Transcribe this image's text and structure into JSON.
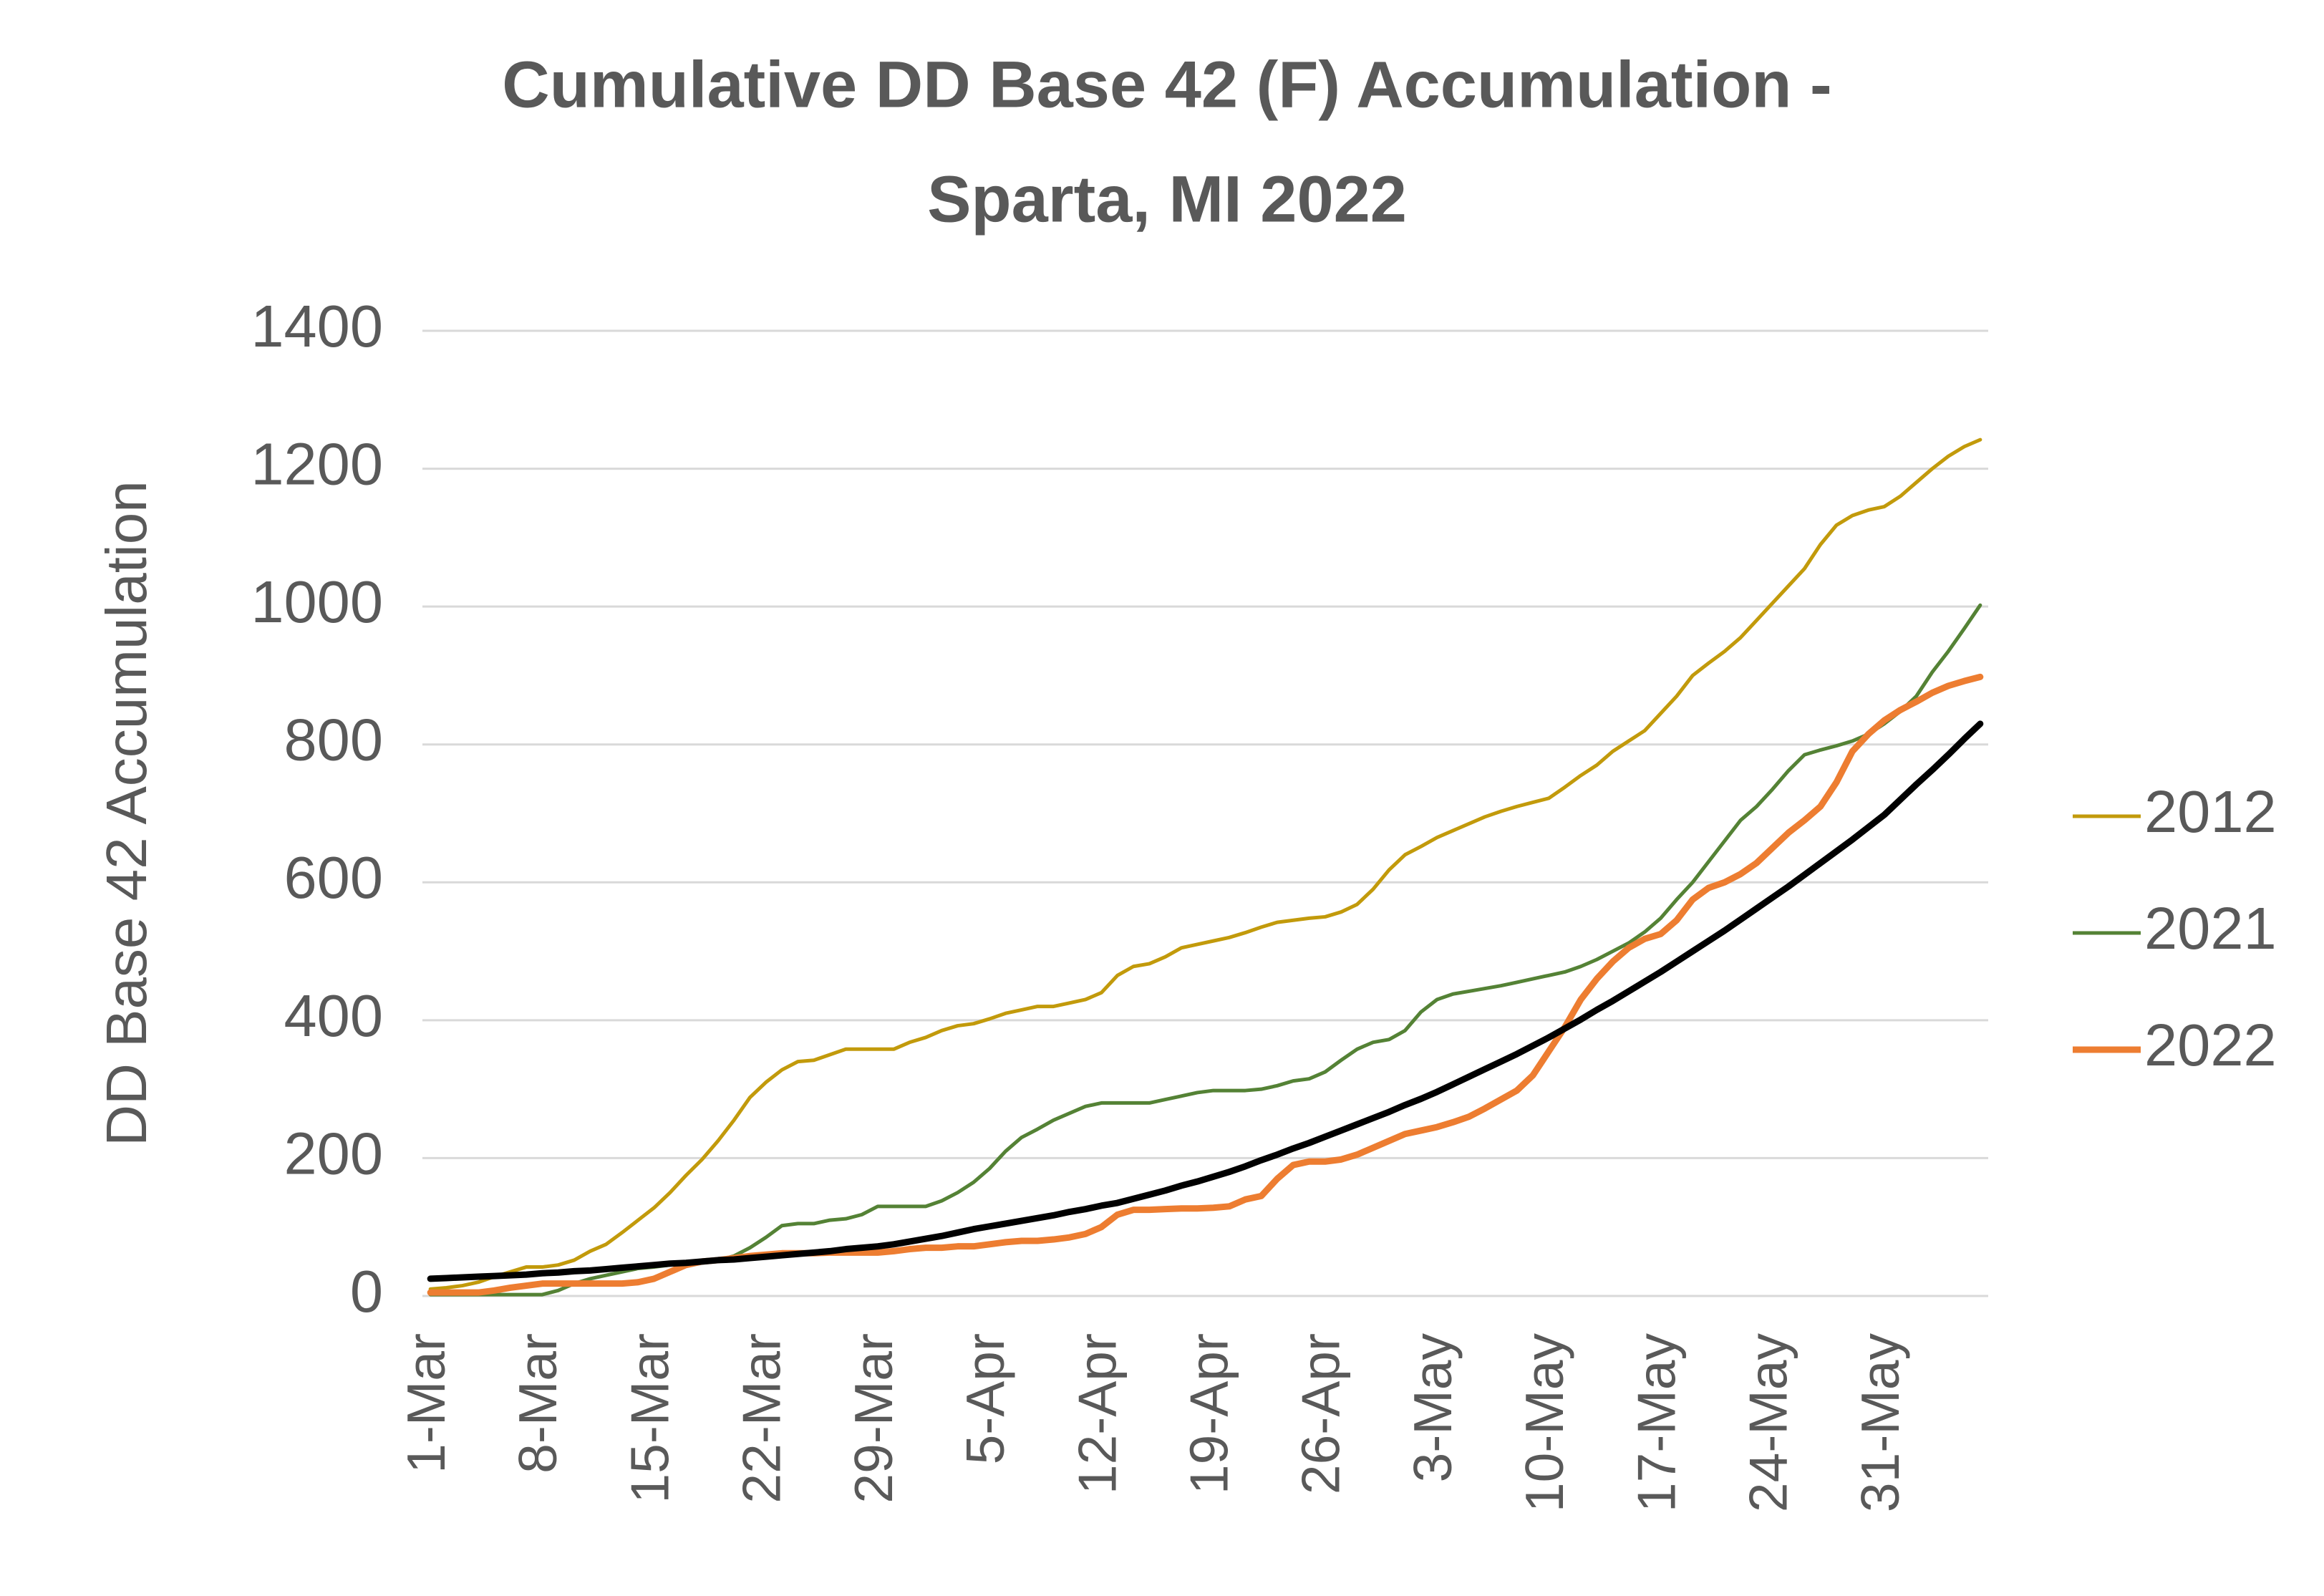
{
  "chart_data": {
    "type": "line",
    "title": [
      "Cumulative DD Base 42 (F) Accumulation -",
      "Sparta, MI 2022"
    ],
    "y_label": "DD Base 42 Accumulation",
    "categories": [
      "1-Mar",
      null,
      null,
      null,
      null,
      null,
      null,
      "8-Mar",
      null,
      null,
      null,
      null,
      null,
      null,
      "15-Mar",
      null,
      null,
      null,
      null,
      null,
      null,
      "22-Mar",
      null,
      null,
      null,
      null,
      null,
      null,
      "29-Mar",
      null,
      null,
      null,
      null,
      null,
      null,
      "5-Apr",
      null,
      null,
      null,
      null,
      null,
      null,
      "12-Apr",
      null,
      null,
      null,
      null,
      null,
      null,
      "19-Apr",
      null,
      null,
      null,
      null,
      null,
      null,
      "26-Apr",
      null,
      null,
      null,
      null,
      null,
      null,
      "3-May",
      null,
      null,
      null,
      null,
      null,
      null,
      "10-May",
      null,
      null,
      null,
      null,
      null,
      null,
      "17-May",
      null,
      null,
      null,
      null,
      null,
      null,
      "24-May",
      null,
      null,
      null,
      null,
      null,
      null,
      "31-May",
      null,
      null,
      null,
      null,
      null,
      null
    ],
    "series": [
      {
        "name": "2012",
        "color": "#c29a0b",
        "width": 5,
        "values": [
          10,
          12,
          15,
          20,
          28,
          35,
          42,
          42,
          45,
          52,
          65,
          75,
          92,
          110,
          128,
          150,
          175,
          198,
          225,
          255,
          288,
          310,
          328,
          340,
          342,
          350,
          358,
          358,
          358,
          358,
          368,
          375,
          385,
          392,
          395,
          402,
          410,
          415,
          420,
          420,
          425,
          430,
          440,
          465,
          478,
          482,
          492,
          505,
          510,
          515,
          520,
          527,
          535,
          542,
          545,
          548,
          550,
          557,
          568,
          590,
          618,
          640,
          652,
          665,
          675,
          685,
          695,
          703,
          710,
          716,
          722,
          738,
          755,
          770,
          790,
          805,
          820,
          845,
          870,
          900,
          918,
          935,
          955,
          980,
          1005,
          1030,
          1055,
          1090,
          1118,
          1132,
          1140,
          1145,
          1160,
          1180,
          1200,
          1218,
          1232,
          1242
        ]
      },
      {
        "name": "2021",
        "color": "#548235",
        "width": 5,
        "values": [
          2,
          2,
          2,
          2,
          2,
          2,
          2,
          2,
          8,
          18,
          25,
          30,
          35,
          40,
          42,
          45,
          48,
          50,
          52,
          58,
          70,
          85,
          102,
          105,
          105,
          110,
          112,
          118,
          130,
          130,
          130,
          130,
          138,
          150,
          165,
          185,
          210,
          230,
          242,
          255,
          265,
          275,
          280,
          280,
          280,
          280,
          285,
          290,
          295,
          298,
          298,
          298,
          300,
          305,
          312,
          315,
          325,
          342,
          358,
          368,
          372,
          385,
          412,
          430,
          438,
          442,
          446,
          450,
          455,
          460,
          465,
          470,
          478,
          488,
          500,
          512,
          528,
          548,
          575,
          600,
          630,
          660,
          690,
          710,
          735,
          762,
          785,
          792,
          798,
          805,
          815,
          830,
          848,
          870,
          905,
          935,
          968,
          1002
        ]
      },
      {
        "name": "2022",
        "color": "#ed7d31",
        "width": 9,
        "values": [
          5,
          5,
          5,
          5,
          8,
          12,
          15,
          18,
          18,
          18,
          18,
          18,
          18,
          20,
          25,
          35,
          45,
          50,
          52,
          55,
          58,
          60,
          62,
          62,
          62,
          63,
          63,
          63,
          63,
          65,
          68,
          70,
          70,
          72,
          72,
          75,
          78,
          80,
          80,
          82,
          85,
          90,
          100,
          118,
          125,
          125,
          126,
          127,
          127,
          128,
          130,
          140,
          145,
          170,
          190,
          195,
          195,
          198,
          205,
          215,
          225,
          235,
          240,
          245,
          252,
          260,
          272,
          285,
          298,
          320,
          355,
          390,
          430,
          460,
          485,
          505,
          518,
          525,
          545,
          575,
          592,
          600,
          612,
          628,
          650,
          672,
          690,
          710,
          745,
          790,
          815,
          835,
          850,
          862,
          875,
          885,
          892,
          898
        ]
      },
      {
        "color": "#000000",
        "width": 9,
        "values": [
          25,
          26,
          27,
          28,
          29,
          30,
          31,
          33,
          34,
          36,
          37,
          39,
          41,
          43,
          45,
          47,
          48,
          50,
          52,
          53,
          55,
          57,
          59,
          61,
          63,
          65,
          68,
          70,
          72,
          75,
          79,
          83,
          87,
          92,
          97,
          101,
          105,
          109,
          113,
          117,
          122,
          126,
          131,
          135,
          141,
          147,
          153,
          160,
          166,
          173,
          180,
          188,
          197,
          205,
          214,
          222,
          231,
          240,
          249,
          258,
          267,
          277,
          286,
          296,
          307,
          318,
          329,
          340,
          351,
          363,
          375,
          388,
          401,
          415,
          428,
          442,
          456,
          470,
          485,
          500,
          515,
          530,
          546,
          562,
          578,
          594,
          611,
          628,
          645,
          662,
          680,
          698,
          720,
          742,
          763,
          785,
          808,
          830
        ]
      }
    ],
    "ylim": [
      0,
      1400
    ],
    "yticks": [
      0,
      200,
      400,
      600,
      800,
      1000,
      1200,
      1400
    ],
    "grid": true,
    "legend": "right"
  }
}
